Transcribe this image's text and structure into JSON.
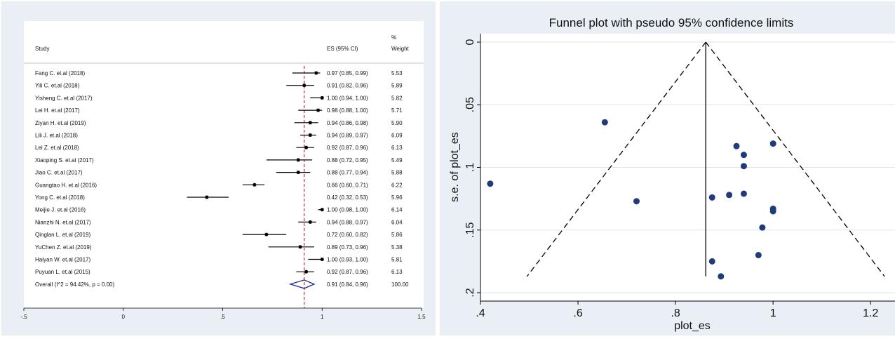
{
  "chart_data": [
    {
      "type": "forest",
      "headers": {
        "study": "Study",
        "es": "ES (95% CI)",
        "weight_top": "%",
        "weight": "Weight"
      },
      "xlim": [
        -0.5,
        1.5
      ],
      "x_ticks": [
        "-.5",
        "0",
        ".5",
        "1",
        "1.5"
      ],
      "x_tick_values": [
        -0.5,
        0,
        0.5,
        1,
        1.5
      ],
      "reference_line": 0.91,
      "studies": [
        {
          "name": "Fang C. et.al (2018)",
          "es": 0.97,
          "lo": 0.85,
          "hi": 0.99,
          "ci_text": "0.97 (0.85, 0.99)",
          "weight": "5.53"
        },
        {
          "name": "Yili C. et.al (2018)",
          "es": 0.91,
          "lo": 0.82,
          "hi": 0.96,
          "ci_text": "0.91 (0.82, 0.96)",
          "weight": "5.89"
        },
        {
          "name": "Yisheng C. et.al (2017)",
          "es": 1.0,
          "lo": 0.94,
          "hi": 1.0,
          "ci_text": "1.00 (0.94, 1.00)",
          "weight": "5.82"
        },
        {
          "name": "Lei H. et.al (2017)",
          "es": 0.98,
          "lo": 0.88,
          "hi": 1.0,
          "ci_text": "0.98 (0.88, 1.00)",
          "weight": "5.71"
        },
        {
          "name": "Ziyan H. et.al (2019)",
          "es": 0.94,
          "lo": 0.86,
          "hi": 0.98,
          "ci_text": "0.94 (0.86, 0.98)",
          "weight": "5.90"
        },
        {
          "name": "Lili J. et.al (2018)",
          "es": 0.94,
          "lo": 0.89,
          "hi": 0.97,
          "ci_text": "0.94 (0.89, 0.97)",
          "weight": "6.09"
        },
        {
          "name": "Lei Z. et.al (2018)",
          "es": 0.92,
          "lo": 0.87,
          "hi": 0.96,
          "ci_text": "0.92 (0.87, 0.96)",
          "weight": "6.13"
        },
        {
          "name": "Xiaoping S. et.al (2017)",
          "es": 0.88,
          "lo": 0.72,
          "hi": 0.95,
          "ci_text": "0.88 (0.72, 0.95)",
          "weight": "5.49"
        },
        {
          "name": "Jiao C. et.al (2017)",
          "es": 0.88,
          "lo": 0.77,
          "hi": 0.94,
          "ci_text": "0.88 (0.77, 0.94)",
          "weight": "5.88"
        },
        {
          "name": "Guangtao H. et.al (2016)",
          "es": 0.66,
          "lo": 0.6,
          "hi": 0.71,
          "ci_text": "0.66 (0.60, 0.71)",
          "weight": "6.22"
        },
        {
          "name": "Yong C. et.al  (2018)",
          "es": 0.42,
          "lo": 0.32,
          "hi": 0.53,
          "ci_text": "0.42 (0.32, 0.53)",
          "weight": "5.96"
        },
        {
          "name": "Meijie J. et.al (2016)",
          "es": 1.0,
          "lo": 0.98,
          "hi": 1.0,
          "ci_text": "1.00 (0.98, 1.00)",
          "weight": "6.14"
        },
        {
          "name": "Nianzhi N. et.al (2017)",
          "es": 0.94,
          "lo": 0.88,
          "hi": 0.97,
          "ci_text": "0.94 (0.88, 0.97)",
          "weight": "6.04"
        },
        {
          "name": "Qinglan L. et.al (2019)",
          "es": 0.72,
          "lo": 0.6,
          "hi": 0.82,
          "ci_text": "0.72 (0.60, 0.82)",
          "weight": "5.86"
        },
        {
          "name": "YuChen Z. et.al (2019)",
          "es": 0.89,
          "lo": 0.73,
          "hi": 0.96,
          "ci_text": "0.89 (0.73, 0.96)",
          "weight": "5.38"
        },
        {
          "name": "Haiyan W. et.al (2017)",
          "es": 1.0,
          "lo": 0.93,
          "hi": 1.0,
          "ci_text": "1.00 (0.93, 1.00)",
          "weight": "5.81"
        },
        {
          "name": "Puyuan L. et.al (2015)",
          "es": 0.92,
          "lo": 0.87,
          "hi": 0.96,
          "ci_text": "0.92 (0.87, 0.96)",
          "weight": "6.13"
        }
      ],
      "overall": {
        "name": "Overall  (I^2 = 94.42%, p = 0.00)",
        "es": 0.91,
        "lo": 0.84,
        "hi": 0.96,
        "ci_text": "0.91 (0.84, 0.96)",
        "weight": "100.00"
      },
      "colors": {
        "reference_line": "#cc2a2a",
        "diamond": "#1a2a9a",
        "points": "#000000"
      }
    },
    {
      "type": "scatter",
      "title": "Funnel plot with pseudo 95% confidence limits",
      "xlabel": "plot_es",
      "ylabel": "s.e. of plot_es",
      "xlim": [
        0.4,
        1.25
      ],
      "ylim": [
        0,
        0.2
      ],
      "y_reversed": true,
      "x_ticks": [
        ".4",
        ".6",
        ".8",
        "1",
        "1.2"
      ],
      "x_tick_values": [
        0.4,
        0.6,
        0.8,
        1.0,
        1.2
      ],
      "y_ticks": [
        "0",
        ".05",
        ".1",
        ".15",
        ".2"
      ],
      "y_tick_values": [
        0,
        0.05,
        0.1,
        0.15,
        0.2
      ],
      "vertical_line": 0.862,
      "apex": [
        0.862,
        0
      ],
      "limit_bottom": 0.187,
      "points": [
        {
          "x": 0.42,
          "y": 0.113
        },
        {
          "x": 0.655,
          "y": 0.064
        },
        {
          "x": 0.72,
          "y": 0.127
        },
        {
          "x": 0.875,
          "y": 0.124
        },
        {
          "x": 0.875,
          "y": 0.175
        },
        {
          "x": 0.893,
          "y": 0.187
        },
        {
          "x": 0.91,
          "y": 0.122
        },
        {
          "x": 0.925,
          "y": 0.083
        },
        {
          "x": 0.94,
          "y": 0.09
        },
        {
          "x": 0.94,
          "y": 0.099
        },
        {
          "x": 0.94,
          "y": 0.121
        },
        {
          "x": 0.97,
          "y": 0.17
        },
        {
          "x": 0.978,
          "y": 0.148
        },
        {
          "x": 1.0,
          "y": 0.081
        },
        {
          "x": 1.0,
          "y": 0.133
        },
        {
          "x": 1.0,
          "y": 0.135
        }
      ],
      "colors": {
        "points": "#1f3b7a",
        "lines": "#000000"
      }
    }
  ]
}
